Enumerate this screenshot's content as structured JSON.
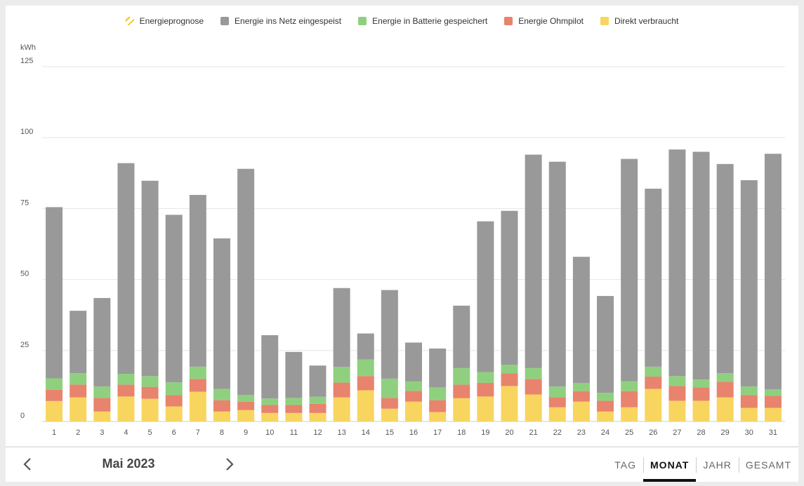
{
  "legend": [
    {
      "label": "Energieprognose",
      "color": "#f5c21b",
      "pattern": "hatched"
    },
    {
      "label": "Energie ins Netz eingespeist",
      "color": "#999999"
    },
    {
      "label": "Energie in Batterie gespeichert",
      "color": "#8fd07f"
    },
    {
      "label": "Energie Ohmpilot",
      "color": "#e8836d"
    },
    {
      "label": "Direkt verbraucht",
      "color": "#f8d55e"
    }
  ],
  "nav": {
    "period": "Mai 2023",
    "tabs": [
      "TAG",
      "MONAT",
      "JAHR",
      "GESAMT"
    ],
    "active_tab": "MONAT"
  },
  "chart_data": {
    "type": "bar",
    "stacked": true,
    "ylabel": "kWh",
    "ylim": [
      0,
      125
    ],
    "yticks": [
      0,
      25,
      50,
      75,
      100,
      125
    ],
    "grid": true,
    "legend_position": "top-center",
    "categories": [
      "1",
      "2",
      "3",
      "4",
      "5",
      "6",
      "7",
      "8",
      "9",
      "10",
      "11",
      "12",
      "13",
      "14",
      "15",
      "16",
      "17",
      "18",
      "19",
      "20",
      "21",
      "22",
      "23",
      "24",
      "25",
      "26",
      "27",
      "28",
      "29",
      "30",
      "31"
    ],
    "series": [
      {
        "name": "Direkt verbraucht",
        "color": "#f8d55e",
        "values": [
          7.2,
          8.5,
          3.5,
          8.8,
          8.0,
          5.3,
          10.5,
          3.5,
          4.0,
          3.0,
          3.0,
          3.0,
          8.5,
          11.0,
          4.5,
          7.0,
          3.3,
          8.2,
          8.8,
          12.5,
          9.5,
          5.0,
          7.0,
          3.5,
          5.0,
          11.5,
          7.3,
          7.3,
          8.5,
          4.8,
          4.8
        ]
      },
      {
        "name": "Energie Ohmpilot",
        "color": "#e8836d",
        "values": [
          4.0,
          4.5,
          4.8,
          4.2,
          4.2,
          4.0,
          4.5,
          4.0,
          3.0,
          2.8,
          2.8,
          3.2,
          5.2,
          5.0,
          3.8,
          3.8,
          4.2,
          4.8,
          4.8,
          4.5,
          5.5,
          3.5,
          3.7,
          3.8,
          5.7,
          4.3,
          5.2,
          4.7,
          5.5,
          4.5,
          4.2
        ]
      },
      {
        "name": "Energie in Batterie gespeichert",
        "color": "#8fd07f",
        "values": [
          4.0,
          4.0,
          4.0,
          3.8,
          3.8,
          4.5,
          4.3,
          4.0,
          2.3,
          2.3,
          2.5,
          2.5,
          5.5,
          5.8,
          6.8,
          3.3,
          4.5,
          5.8,
          3.8,
          3.0,
          3.8,
          3.8,
          2.8,
          2.8,
          3.5,
          3.5,
          3.5,
          2.8,
          3.0,
          3.0,
          2.3
        ]
      },
      {
        "name": "Energie ins Netz eingespeist",
        "color": "#999999",
        "values": [
          60.3,
          22.0,
          31.2,
          74.2,
          68.8,
          59.0,
          60.5,
          53.0,
          79.7,
          22.3,
          16.2,
          11.0,
          27.8,
          9.2,
          31.2,
          13.7,
          13.7,
          22.0,
          53.1,
          54.2,
          75.2,
          79.2,
          44.5,
          34.1,
          78.3,
          62.7,
          79.8,
          80.2,
          73.7,
          72.7,
          83.0
        ]
      }
    ]
  }
}
